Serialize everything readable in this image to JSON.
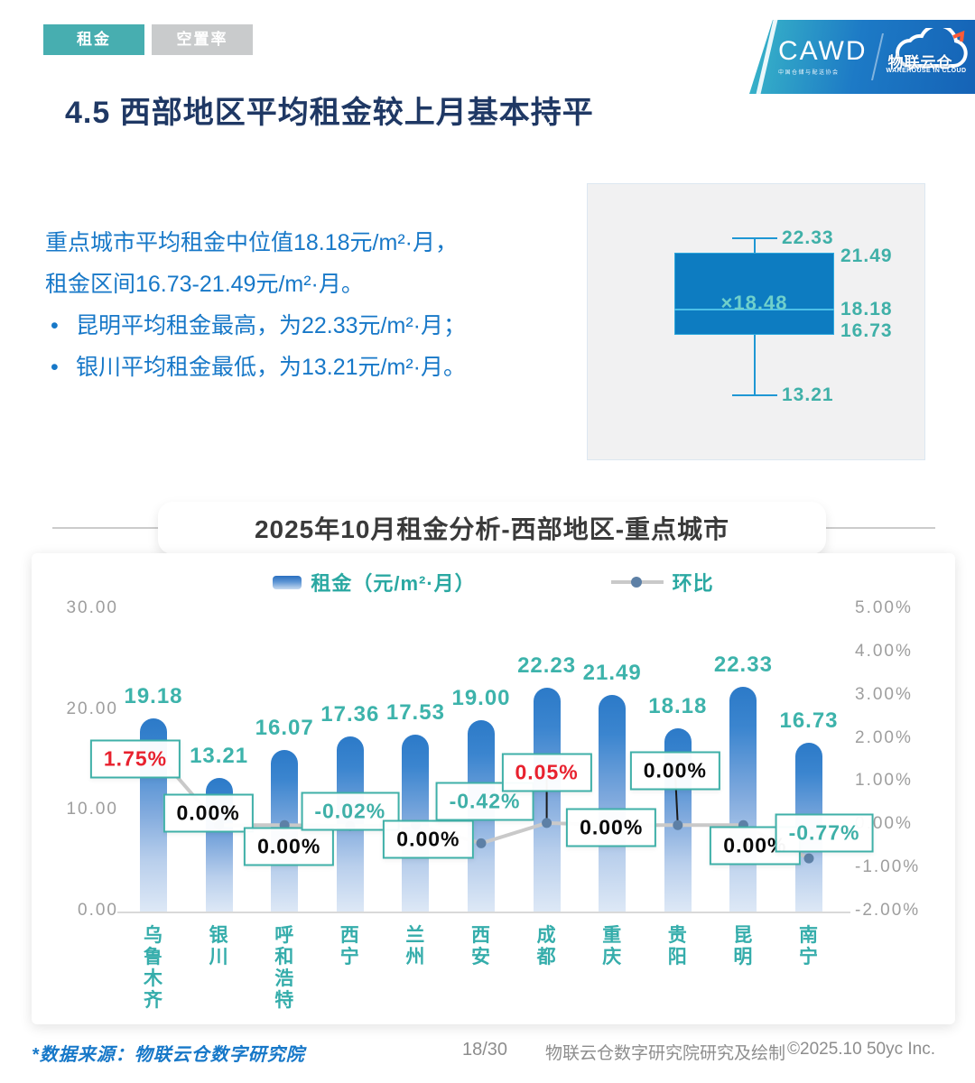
{
  "tabs": [
    {
      "label": "租金",
      "active": true
    },
    {
      "label": "空置率",
      "active": false
    }
  ],
  "logo": {
    "cawd": "CAWD",
    "cawd_sub": "中国仓储与配送协会",
    "brand": "物联云仓",
    "brand_sub": "WAREHOUSE IN CLOUD"
  },
  "page_title": "4.5 西部地区平均租金较上月基本持平",
  "summary": {
    "line1": "重点城市平均租金中位值18.18元/m²·月，",
    "line2": "租金区间16.73-21.49元/m²·月。",
    "bullets": [
      "昆明平均租金最高，为22.33元/m²·月；",
      "银川平均租金最低，为13.21元/m²·月。"
    ]
  },
  "boxplot": {
    "max": 22.33,
    "q3": 21.49,
    "mean": 18.48,
    "median": 18.18,
    "q1": 16.73,
    "min": 13.21,
    "labels": {
      "max": "22.33",
      "q3": "21.49",
      "mean": "×18.48",
      "median": "18.18",
      "q1": "16.73",
      "min": "13.21"
    },
    "colors": {
      "box_fill": "#0d7cc1",
      "box_border": "#2fa9dd",
      "whisker": "#1f97d4",
      "median_line": "#4cc0e8",
      "mean_text": "#6fd0cb",
      "label": "#3fb0a8",
      "panel_bg": "#f1f1f2"
    }
  },
  "chart_title": "2025年10月租金分析-西部地区-重点城市",
  "chart_data": {
    "type": "bar",
    "categories": [
      "乌鲁木齐",
      "银川",
      "呼和浩特",
      "西宁",
      "兰州",
      "西安",
      "成都",
      "重庆",
      "贵阳",
      "昆明",
      "南宁"
    ],
    "series": [
      {
        "name": "租金（元/m²·月）",
        "type": "bar",
        "values": [
          19.18,
          13.21,
          16.07,
          17.36,
          17.53,
          19.0,
          22.23,
          21.49,
          18.18,
          22.33,
          16.73
        ],
        "labels": [
          "19.18",
          "13.21",
          "16.07",
          "17.36",
          "17.53",
          "19.00",
          "22.23",
          "21.49",
          "18.18",
          "22.33",
          "16.73"
        ]
      },
      {
        "name": "环比",
        "type": "line",
        "values": [
          1.75,
          0.0,
          0.0,
          -0.02,
          0.0,
          -0.42,
          0.05,
          0.0,
          0.0,
          0.0,
          -0.77
        ],
        "labels": [
          "1.75%",
          "0.00%",
          "0.00%",
          "-0.02%",
          "0.00%",
          "-0.42%",
          "0.05%",
          "0.00%",
          "0.00%",
          "0.00%",
          "-0.77%"
        ]
      }
    ],
    "left_axis": {
      "ticks": [
        "30.00",
        "20.00",
        "10.00",
        "0.00"
      ],
      "min": 0,
      "max": 30
    },
    "right_axis": {
      "ticks": [
        "5.00%",
        "4.00%",
        "3.00%",
        "2.00%",
        "1.00%",
        "0.00%",
        "-1.00%",
        "-2.00%"
      ],
      "min": -2,
      "max": 5
    },
    "grid": false,
    "legend_position": "top",
    "colors": {
      "bar_top": "#2c7ac8",
      "bar_bottom": "#dde8f6",
      "value_label": "#3db3ab",
      "line": "#c9c9c9",
      "dot": "#5d80a6",
      "pct_positive": "#e8212e",
      "pct_zero": "#0a0a0a",
      "pct_negative": "#3fb0a8",
      "axis_text": "#9e9e9e"
    }
  },
  "footer": {
    "source": "*数据来源：物联云仓数字研究院",
    "page": "18/30",
    "credit": "物联云仓数字研究院研究及绘制",
    "copyright": "©2025.10 50yc Inc."
  }
}
